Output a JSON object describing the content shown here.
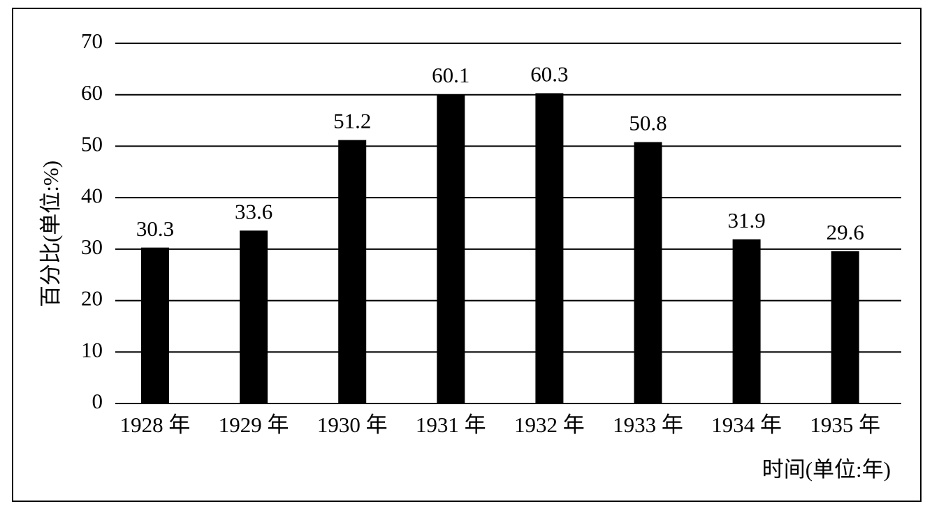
{
  "chart_data": {
    "type": "bar",
    "y_label": "百分比(单位:%)",
    "x_label": "时间(单位:年)",
    "categories": [
      "1928 年",
      "1929 年",
      "1930 年",
      "1931 年",
      "1932 年",
      "1933 年",
      "1934 年",
      "1935 年"
    ],
    "values": [
      30.3,
      33.6,
      51.2,
      60.1,
      60.3,
      50.8,
      31.9,
      29.6
    ],
    "color": "#000000",
    "ylim": [
      0,
      70
    ],
    "yticks": [
      0,
      10,
      20,
      30,
      40,
      50,
      60,
      70
    ],
    "grid": true
  }
}
